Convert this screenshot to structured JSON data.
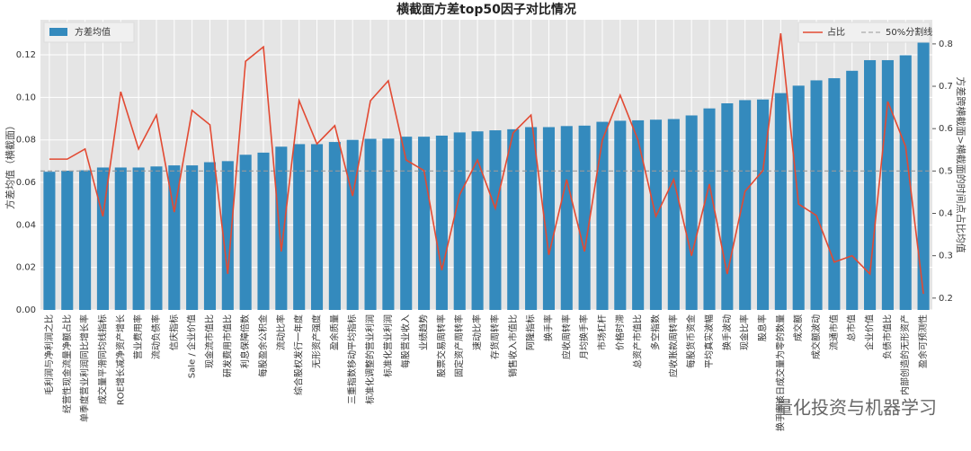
{
  "chart_data": {
    "type": "bar",
    "title": "横截面方差top50因子对比情况",
    "y_label": "方差均值（横截面）",
    "y2_label": "方差跨横截面>横截面的时间点占比均值",
    "watermark": "量化投资与机器学习",
    "categories": [
      "毛利润与净利润之比",
      "经营性现金流量净额占比",
      "单季度营业利润同比增长率",
      "成交量平滑同均线指标",
      "ROE增长减净资产增长",
      "营业费用率",
      "流动负债率",
      "信庆指标",
      "Sale / 企业价值",
      "现金流市值比",
      "研发费用市值比",
      "利息保障倍数",
      "每股盈余公积金",
      "流动比率",
      "综合股权发行一年度",
      "无形资产强度",
      "盈余质量",
      "三重指数移动平均指标",
      "标准化调整的营业利润",
      "标准化营业利润",
      "每股营业收入",
      "业绩趋势",
      "股票交易周转率",
      "固定资产周转率",
      "速动比率",
      "存货周转率",
      "销售收入市值比",
      "阿隆指标",
      "换手率",
      "应收周转率",
      "月均换手率",
      "市场杠杆",
      "价格时滞",
      "总资产市值比",
      "多空指数",
      "应收账款周转率",
      "每股货币资金",
      "平均真实波幅",
      "换手波动",
      "现金比率",
      "股息率",
      "换手率该日成交量为零的数量",
      "成交额",
      "成交额波动",
      "流通市值",
      "总市值",
      "企业价值",
      "负债市值比",
      "内部创造的无形资产",
      "盈余可预测性"
    ],
    "series": [
      {
        "name": "方差均值",
        "color": "#348abd",
        "values": [
          0.065,
          0.0655,
          0.0657,
          0.067,
          0.067,
          0.067,
          0.0675,
          0.068,
          0.068,
          0.0695,
          0.07,
          0.073,
          0.074,
          0.0768,
          0.078,
          0.078,
          0.079,
          0.08,
          0.0805,
          0.0806,
          0.0815,
          0.0815,
          0.082,
          0.0835,
          0.084,
          0.0845,
          0.085,
          0.086,
          0.086,
          0.0865,
          0.0867,
          0.0885,
          0.089,
          0.0892,
          0.0895,
          0.0898,
          0.0915,
          0.0948,
          0.0972,
          0.0987,
          0.099,
          0.102,
          0.1055,
          0.108,
          0.109,
          0.1125,
          0.1175,
          0.1175,
          0.1198,
          0.127
        ]
      },
      {
        "name": "占比",
        "color": "#e24a33",
        "axis": "y2",
        "values": [
          0.528,
          0.528,
          0.552,
          0.393,
          0.687,
          0.552,
          0.632,
          0.403,
          0.643,
          0.609,
          0.257,
          0.759,
          0.793,
          0.31,
          0.666,
          0.564,
          0.607,
          0.441,
          0.666,
          0.713,
          0.526,
          0.501,
          0.266,
          0.444,
          0.526,
          0.412,
          0.59,
          0.632,
          0.302,
          0.48,
          0.31,
          0.573,
          0.679,
          0.573,
          0.393,
          0.48,
          0.3,
          0.469,
          0.257,
          0.452,
          0.501,
          0.825,
          0.422,
          0.395,
          0.285,
          0.3,
          0.257,
          0.664,
          0.558,
          0.21
        ]
      }
    ],
    "reference_line": {
      "name": "50%分割线",
      "value": 0.5,
      "axis": "y2",
      "color": "#999999"
    },
    "ylim": [
      0,
      0.1365
    ],
    "yticks": [
      {
        "value": 0,
        "label": "0.00"
      },
      {
        "value": 0.02,
        "label": "0.02"
      },
      {
        "value": 0.04,
        "label": "0.04"
      },
      {
        "value": 0.06,
        "label": "0.06"
      },
      {
        "value": 0.08,
        "label": "0.08"
      },
      {
        "value": 0.1,
        "label": "0.10"
      },
      {
        "value": 0.12,
        "label": "0.12"
      }
    ],
    "y2lim": [
      0.172,
      0.857
    ],
    "y2ticks": [
      0.2,
      0.3,
      0.4,
      0.5,
      0.6,
      0.7,
      0.8
    ],
    "grid": true
  }
}
